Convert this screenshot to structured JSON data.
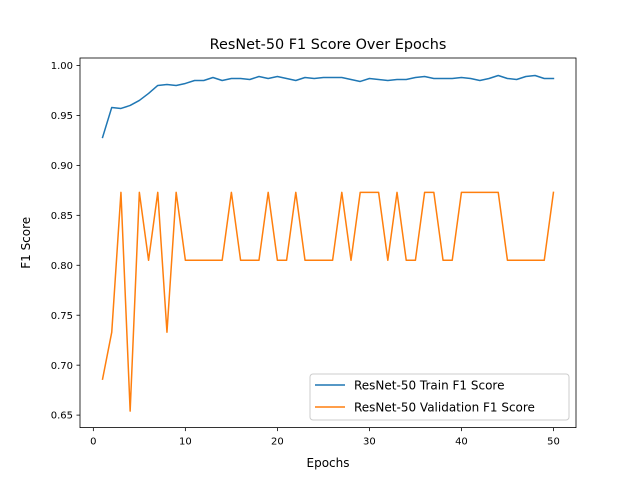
{
  "chart_data": {
    "type": "line",
    "title": "ResNet-50 F1 Score Over Epochs",
    "xlabel": "Epochs",
    "ylabel": "F1 Score",
    "xlim": [
      -1.45,
      52.45
    ],
    "ylim": [
      0.6375,
      1.0075
    ],
    "xticks": [
      0,
      10,
      20,
      30,
      40,
      50
    ],
    "yticks": [
      0.65,
      0.7,
      0.75,
      0.8,
      0.85,
      0.9,
      0.95,
      1.0
    ],
    "xtick_labels": [
      "0",
      "10",
      "20",
      "30",
      "40",
      "50"
    ],
    "ytick_labels": [
      "0.65",
      "0.70",
      "0.75",
      "0.80",
      "0.85",
      "0.90",
      "0.95",
      "1.00"
    ],
    "grid": false,
    "legend_position": "lower-right",
    "x": [
      1,
      2,
      3,
      4,
      5,
      6,
      7,
      8,
      9,
      10,
      11,
      12,
      13,
      14,
      15,
      16,
      17,
      18,
      19,
      20,
      21,
      22,
      23,
      24,
      25,
      26,
      27,
      28,
      29,
      30,
      31,
      32,
      33,
      34,
      35,
      36,
      37,
      38,
      39,
      40,
      41,
      42,
      43,
      44,
      45,
      46,
      47,
      48,
      49,
      50
    ],
    "series": [
      {
        "name": "ResNet-50 Train F1 Score",
        "color": "#1f77b4",
        "values": [
          0.928,
          0.958,
          0.957,
          0.96,
          0.965,
          0.972,
          0.98,
          0.981,
          0.98,
          0.982,
          0.985,
          0.985,
          0.988,
          0.985,
          0.987,
          0.987,
          0.986,
          0.989,
          0.987,
          0.989,
          0.987,
          0.985,
          0.988,
          0.987,
          0.988,
          0.988,
          0.988,
          0.986,
          0.984,
          0.987,
          0.986,
          0.985,
          0.986,
          0.986,
          0.988,
          0.989,
          0.987,
          0.987,
          0.987,
          0.988,
          0.987,
          0.985,
          0.987,
          0.99,
          0.987,
          0.986,
          0.989,
          0.99,
          0.987,
          0.987
        ]
      },
      {
        "name": "ResNet-50 Validation F1 Score",
        "color": "#ff7f0e",
        "values": [
          0.686,
          0.733,
          0.873,
          0.654,
          0.873,
          0.805,
          0.873,
          0.733,
          0.873,
          0.805,
          0.805,
          0.805,
          0.805,
          0.805,
          0.873,
          0.805,
          0.805,
          0.805,
          0.873,
          0.805,
          0.805,
          0.873,
          0.805,
          0.805,
          0.805,
          0.805,
          0.873,
          0.805,
          0.873,
          0.873,
          0.873,
          0.805,
          0.873,
          0.805,
          0.805,
          0.873,
          0.873,
          0.805,
          0.805,
          0.873,
          0.873,
          0.873,
          0.873,
          0.873,
          0.805,
          0.805,
          0.805,
          0.805,
          0.805,
          0.873
        ]
      }
    ]
  }
}
